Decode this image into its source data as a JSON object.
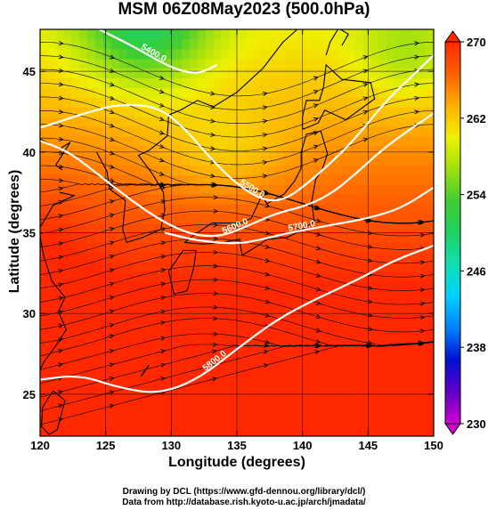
{
  "title": "MSM 06Z08May2023 (500.0hPa)",
  "credit_line1": "Drawing by DCL (https://www.gfd-dennou.org/library/dcl/)",
  "credit_line2": "Data from http://database.rish.kyoto-u.ac.jp/arch/jmadata/",
  "chart_data": {
    "type": "heatmap",
    "title": "MSM 06Z08May2023 (500.0hPa)",
    "xlabel": "Longitude (degrees)",
    "ylabel": "Latitude  (degrees)",
    "xlim": [
      120,
      150
    ],
    "ylim": [
      22.4,
      47.6
    ],
    "x_ticks": [
      "120",
      "125",
      "130",
      "135",
      "140",
      "145",
      "150"
    ],
    "y_ticks": [
      "25",
      "30",
      "35",
      "40",
      "45"
    ],
    "grid": true,
    "colorbar": {
      "min": 230,
      "max": 270,
      "ticks": [
        "230",
        "238",
        "246",
        "254",
        "262",
        "270"
      ],
      "colors": [
        "#d000d0",
        "#6000c8",
        "#0010d0",
        "#0080ff",
        "#00d0ff",
        "#10e0b0",
        "#20d060",
        "#40cc30",
        "#a0e010",
        "#f0f000",
        "#ffb000",
        "#ff6000",
        "#ff2800"
      ],
      "position": "right"
    },
    "contours": [
      {
        "label": "5400.0",
        "points": [
          [
            124.5,
            47.6
          ],
          [
            127,
            46.6
          ],
          [
            130,
            45.2
          ],
          [
            132,
            44.8
          ],
          [
            133.5,
            45.4
          ]
        ]
      },
      {
        "label": "5500.0",
        "points": [
          [
            120,
            41.5
          ],
          [
            123,
            42.3
          ],
          [
            126,
            43.0
          ],
          [
            129,
            42.8
          ],
          [
            131,
            41.5
          ],
          [
            133,
            39.6
          ],
          [
            135,
            38.0
          ],
          [
            137,
            37.0
          ],
          [
            138.5,
            37.0
          ],
          [
            140,
            37.8
          ],
          [
            142,
            39.2
          ],
          [
            144,
            40.8
          ],
          [
            146.5,
            43.3
          ],
          [
            149,
            45.2
          ],
          [
            150,
            46.0
          ]
        ]
      },
      {
        "label": "5600.0",
        "points": [
          [
            120,
            40.7
          ],
          [
            122,
            40.1
          ],
          [
            124,
            38.9
          ],
          [
            126,
            37.6
          ],
          [
            128,
            36.4
          ],
          [
            130,
            35.4
          ],
          [
            132,
            34.8
          ],
          [
            134,
            34.8
          ],
          [
            136,
            35.5
          ],
          [
            138,
            36.2
          ],
          [
            140,
            36.6
          ],
          [
            142,
            37.3
          ],
          [
            144,
            38.6
          ],
          [
            146,
            40.1
          ],
          [
            148,
            41.3
          ],
          [
            150,
            42.4
          ]
        ]
      },
      {
        "label": "5700.0",
        "points": [
          [
            129.5,
            35.0
          ],
          [
            132,
            34.5
          ],
          [
            135,
            34.3
          ],
          [
            137,
            34.6
          ],
          [
            139,
            35.0
          ],
          [
            141,
            35.3
          ],
          [
            143,
            35.6
          ],
          [
            145,
            35.9
          ],
          [
            147.5,
            36.5
          ],
          [
            150,
            37.8
          ]
        ]
      },
      {
        "label": "5800.0",
        "points": [
          [
            120,
            25.9
          ],
          [
            123,
            26.2
          ],
          [
            126,
            25.4
          ],
          [
            129,
            25.0
          ],
          [
            132,
            25.9
          ],
          [
            135,
            27.8
          ],
          [
            138,
            29.6
          ],
          [
            141,
            30.9
          ],
          [
            144,
            32.0
          ],
          [
            147,
            33.3
          ],
          [
            150,
            34.2
          ]
        ]
      }
    ]
  }
}
